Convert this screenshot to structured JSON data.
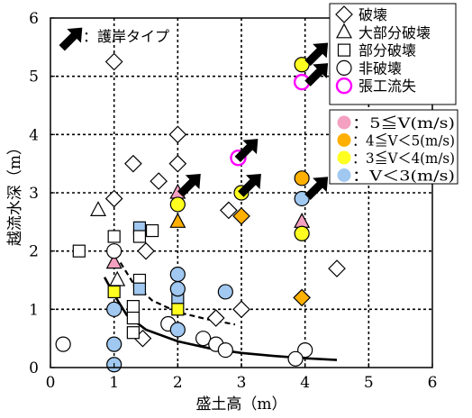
{
  "chart_data": {
    "type": "scatter",
    "xlabel": "盛土高（m）",
    "ylabel": "越流水深（m）",
    "xlim": [
      0,
      6
    ],
    "ylim": [
      0,
      6
    ],
    "x_ticks": [
      "0",
      "1",
      "2",
      "3",
      "4",
      "5",
      "6"
    ],
    "y_ticks": [
      "0",
      "1",
      "2",
      "3",
      "4",
      "5",
      "6"
    ],
    "grid": "dashed",
    "legend_shapes": [
      {
        "marker": "diamond",
        "label": "破壊"
      },
      {
        "marker": "triangle",
        "label": "大部分破壊"
      },
      {
        "marker": "square",
        "label": "部分破壊"
      },
      {
        "marker": "circle",
        "label": "非破壊"
      },
      {
        "marker": "ring-magenta",
        "label": "張工流失"
      }
    ],
    "legend_arrow": "：護岸タイプ",
    "legend_velocity": [
      {
        "color": "#f4a0c0",
        "label": "：5≦V(m/s)"
      },
      {
        "color": "#ffb000",
        "label": "：4≦V＜5(m/s)"
      },
      {
        "color": "#ffff20",
        "label": "：3≦V＜4(m/s)"
      },
      {
        "color": "#a0c8f0",
        "label": "：V＜3(m/s)"
      }
    ],
    "colors": {
      "v5": "#f4a0c0",
      "v4": "#ffb000",
      "v3": "#ffff20",
      "vlow": "#a0c8f0",
      "none": "#ffffff",
      "ring": "#ff00ff"
    },
    "points": [
      {
        "x": 1.0,
        "y": 5.25,
        "m": "diamond",
        "c": "none"
      },
      {
        "x": 2.0,
        "y": 4.0,
        "m": "diamond",
        "c": "none"
      },
      {
        "x": 1.3,
        "y": 3.5,
        "m": "diamond",
        "c": "none"
      },
      {
        "x": 1.7,
        "y": 3.2,
        "m": "diamond",
        "c": "none"
      },
      {
        "x": 2.0,
        "y": 3.5,
        "m": "diamond",
        "c": "none"
      },
      {
        "x": 1.0,
        "y": 2.9,
        "m": "diamond",
        "c": "none"
      },
      {
        "x": 2.8,
        "y": 2.7,
        "m": "diamond",
        "c": "none"
      },
      {
        "x": 1.5,
        "y": 2.0,
        "m": "diamond",
        "c": "none"
      },
      {
        "x": 1.45,
        "y": 0.5,
        "m": "diamond",
        "c": "none"
      },
      {
        "x": 2.6,
        "y": 0.85,
        "m": "diamond",
        "c": "none"
      },
      {
        "x": 3.0,
        "y": 1.0,
        "m": "diamond",
        "c": "none"
      },
      {
        "x": 4.5,
        "y": 1.7,
        "m": "diamond",
        "c": "none"
      },
      {
        "x": 3.0,
        "y": 2.6,
        "m": "diamond",
        "c": "v4"
      },
      {
        "x": 3.95,
        "y": 1.2,
        "m": "diamond",
        "c": "v4"
      },
      {
        "x": 0.75,
        "y": 2.7,
        "m": "triangle",
        "c": "none"
      },
      {
        "x": 2.0,
        "y": 3.0,
        "m": "triangle",
        "c": "v5"
      },
      {
        "x": 2.0,
        "y": 2.5,
        "m": "triangle",
        "c": "v4"
      },
      {
        "x": 3.95,
        "y": 2.5,
        "m": "triangle",
        "c": "v5"
      },
      {
        "x": 1.0,
        "y": 1.8,
        "m": "triangle",
        "c": "v5"
      },
      {
        "x": 1.05,
        "y": 1.5,
        "m": "triangle",
        "c": "none"
      },
      {
        "x": 0.45,
        "y": 2.0,
        "m": "square",
        "c": "none"
      },
      {
        "x": 1.0,
        "y": 2.25,
        "m": "square",
        "c": "none"
      },
      {
        "x": 1.0,
        "y": 1.3,
        "m": "square",
        "c": "v3"
      },
      {
        "x": 1.4,
        "y": 2.4,
        "m": "square",
        "c": "vlow"
      },
      {
        "x": 1.4,
        "y": 2.25,
        "m": "square",
        "c": "none"
      },
      {
        "x": 1.6,
        "y": 2.35,
        "m": "square",
        "c": "none"
      },
      {
        "x": 1.4,
        "y": 1.5,
        "m": "square",
        "c": "none"
      },
      {
        "x": 1.4,
        "y": 1.35,
        "m": "square",
        "c": "vlow"
      },
      {
        "x": 1.3,
        "y": 1.05,
        "m": "square",
        "c": "none"
      },
      {
        "x": 1.3,
        "y": 0.85,
        "m": "square",
        "c": "none"
      },
      {
        "x": 1.3,
        "y": 0.6,
        "m": "square",
        "c": "none"
      },
      {
        "x": 2.0,
        "y": 1.2,
        "m": "square",
        "c": "vlow"
      },
      {
        "x": 2.0,
        "y": 1.0,
        "m": "square",
        "c": "v3"
      },
      {
        "x": 0.2,
        "y": 0.4,
        "m": "circle",
        "c": "none"
      },
      {
        "x": 1.0,
        "y": 2.0,
        "m": "circle",
        "c": "none"
      },
      {
        "x": 1.0,
        "y": 1.0,
        "m": "circle",
        "c": "vlow"
      },
      {
        "x": 1.0,
        "y": 0.4,
        "m": "circle",
        "c": "vlow"
      },
      {
        "x": 1.0,
        "y": 0.05,
        "m": "circle",
        "c": "vlow"
      },
      {
        "x": 1.85,
        "y": 0.75,
        "m": "circle",
        "c": "none"
      },
      {
        "x": 2.0,
        "y": 1.6,
        "m": "circle",
        "c": "vlow"
      },
      {
        "x": 2.0,
        "y": 1.35,
        "m": "circle",
        "c": "vlow"
      },
      {
        "x": 2.0,
        "y": 0.65,
        "m": "circle",
        "c": "vlow"
      },
      {
        "x": 2.0,
        "y": 2.8,
        "m": "circle",
        "c": "v3"
      },
      {
        "x": 2.4,
        "y": 0.5,
        "m": "circle",
        "c": "none"
      },
      {
        "x": 2.6,
        "y": 0.4,
        "m": "circle",
        "c": "none"
      },
      {
        "x": 2.75,
        "y": 0.3,
        "m": "circle",
        "c": "none"
      },
      {
        "x": 2.75,
        "y": 1.3,
        "m": "circle",
        "c": "vlow"
      },
      {
        "x": 3.0,
        "y": 3.0,
        "m": "circle",
        "c": "v3"
      },
      {
        "x": 2.95,
        "y": 3.6,
        "m": "circle",
        "c": "none",
        "ring": true
      },
      {
        "x": 3.95,
        "y": 5.2,
        "m": "circle",
        "c": "v3"
      },
      {
        "x": 3.95,
        "y": 4.9,
        "m": "circle",
        "c": "none",
        "ring": true
      },
      {
        "x": 3.95,
        "y": 3.25,
        "m": "circle",
        "c": "v4"
      },
      {
        "x": 3.95,
        "y": 2.9,
        "m": "circle",
        "c": "vlow"
      },
      {
        "x": 3.95,
        "y": 2.3,
        "m": "circle",
        "c": "v3"
      },
      {
        "x": 4.0,
        "y": 0.3,
        "m": "circle",
        "c": "none"
      },
      {
        "x": 3.85,
        "y": 0.15,
        "m": "circle",
        "c": "none"
      }
    ],
    "arrows": [
      {
        "x": 2.2,
        "y": 3.15
      },
      {
        "x": 3.1,
        "y": 3.75
      },
      {
        "x": 3.15,
        "y": 3.15
      },
      {
        "x": 4.2,
        "y": 5.4
      },
      {
        "x": 4.2,
        "y": 5.05
      },
      {
        "x": 4.2,
        "y": 3.1
      }
    ],
    "lines": [
      {
        "style": "solid",
        "x": [
          0.85,
          1.0,
          1.2,
          1.5,
          2.0,
          2.5,
          3.0,
          3.5,
          4.0,
          4.5
        ],
        "y": [
          1.55,
          1.25,
          0.9,
          0.65,
          0.45,
          0.33,
          0.25,
          0.2,
          0.16,
          0.13
        ]
      },
      {
        "style": "dashed",
        "x": [
          1.1,
          1.3,
          1.6,
          2.0,
          2.5,
          2.9
        ],
        "y": [
          1.8,
          1.45,
          1.15,
          0.95,
          0.82,
          0.74
        ]
      }
    ]
  }
}
